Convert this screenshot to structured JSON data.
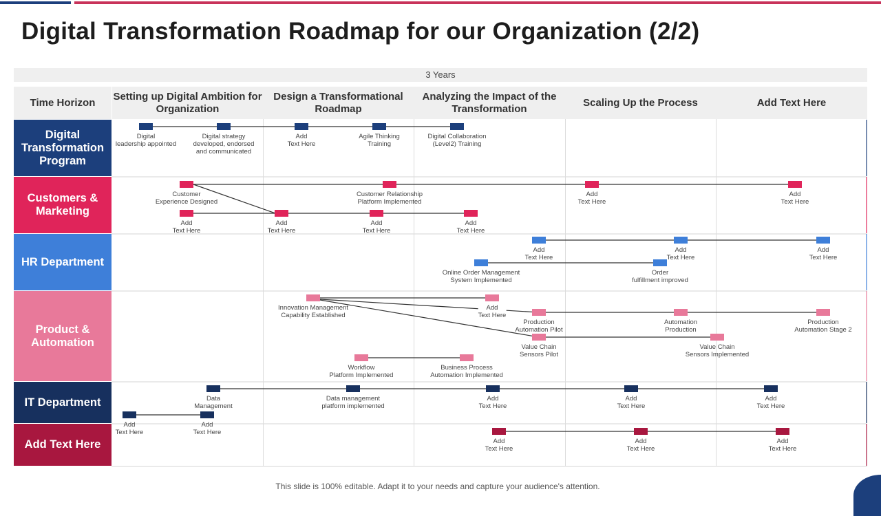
{
  "title": "Digital Transformation Roadmap for our Organization (2/2)",
  "span_label": "3 Years",
  "header": {
    "time_horizon": "Time Horizon",
    "phases": [
      "Setting up Digital Ambition for Organization",
      "Design a Transformational Roadmap",
      "Analyzing the Impact of the Transformation",
      "Scaling Up the Process",
      "Add  Text Here"
    ]
  },
  "rows": [
    {
      "label": "Digital Transformation Program",
      "color": "#1c3f7c"
    },
    {
      "label": "Customers & Marketing",
      "color": "#e0245a"
    },
    {
      "label": "HR Department",
      "color": "#3e7fd9"
    },
    {
      "label": "Product & Automation",
      "color": "#e8799a"
    },
    {
      "label": "IT Department",
      "color": "#17305e"
    },
    {
      "label": "Add  Text Here",
      "color": "#a8173f"
    }
  ],
  "milestones": [
    {
      "row": 0,
      "lines": [
        "Digital",
        "leadership appointed"
      ]
    },
    {
      "row": 0,
      "lines": [
        "Digital strategy",
        "developed, endorsed",
        "and communicated"
      ]
    },
    {
      "row": 0,
      "lines": [
        "Add",
        "Text Here"
      ]
    },
    {
      "row": 0,
      "lines": [
        "Agile Thinking",
        "Training"
      ]
    },
    {
      "row": 0,
      "lines": [
        "Digital Collaboration",
        "(Level2) Training"
      ]
    },
    {
      "row": 1,
      "lines": [
        "Customer",
        "Experience Designed"
      ]
    },
    {
      "row": 1,
      "lines": [
        "Customer Relationship",
        "Platform Implemented"
      ]
    },
    {
      "row": 1,
      "lines": [
        "Add",
        "Text Here"
      ]
    },
    {
      "row": 1,
      "lines": [
        "Add",
        "Text Here"
      ]
    },
    {
      "row": 1,
      "lines": [
        "Add",
        "Text Here"
      ]
    },
    {
      "row": 1,
      "lines": [
        "Add",
        "Text Here"
      ]
    },
    {
      "row": 1,
      "lines": [
        "Add",
        "Text Here"
      ]
    },
    {
      "row": 1,
      "lines": [
        "Add",
        "Text Here"
      ]
    },
    {
      "row": 2,
      "lines": [
        "Add",
        "Text Here"
      ]
    },
    {
      "row": 2,
      "lines": [
        "Add",
        "Text Here"
      ]
    },
    {
      "row": 2,
      "lines": [
        "Add",
        "Text Here"
      ]
    },
    {
      "row": 2,
      "lines": [
        "Online Order Management",
        "System Implemented"
      ]
    },
    {
      "row": 2,
      "lines": [
        "Order",
        "fulfillment improved"
      ]
    },
    {
      "row": 3,
      "lines": [
        "Innovation Management",
        "Capability Established"
      ]
    },
    {
      "row": 3,
      "lines": [
        "Add",
        "Text Here"
      ]
    },
    {
      "row": 3,
      "lines": [
        "Production",
        "Automation Pilot"
      ]
    },
    {
      "row": 3,
      "lines": [
        "Automation",
        "Production"
      ]
    },
    {
      "row": 3,
      "lines": [
        "Production",
        "Automation Stage 2"
      ]
    },
    {
      "row": 3,
      "lines": [
        "Value Chain",
        "Sensors Pilot"
      ]
    },
    {
      "row": 3,
      "lines": [
        "Value Chain",
        "Sensors Implemented"
      ]
    },
    {
      "row": 3,
      "lines": [
        "Workflow",
        "Platform Implemented"
      ]
    },
    {
      "row": 3,
      "lines": [
        "Business Process",
        "Automation Implemented"
      ]
    },
    {
      "row": 4,
      "lines": [
        "Data",
        "Management"
      ]
    },
    {
      "row": 4,
      "lines": [
        "Data management",
        "platform implemented"
      ]
    },
    {
      "row": 4,
      "lines": [
        "Add",
        "Text Here"
      ]
    },
    {
      "row": 4,
      "lines": [
        "Add",
        "Text Here"
      ]
    },
    {
      "row": 4,
      "lines": [
        "Add",
        "Text Here"
      ]
    },
    {
      "row": 4,
      "lines": [
        "Add",
        "Text Here"
      ]
    },
    {
      "row": 4,
      "lines": [
        "Add",
        "Text Here"
      ]
    },
    {
      "row": 5,
      "lines": [
        "Add",
        "Text Here"
      ]
    },
    {
      "row": 5,
      "lines": [
        "Add",
        "Text Here"
      ]
    },
    {
      "row": 5,
      "lines": [
        "Add",
        "Text Here"
      ]
    }
  ],
  "footer": "This slide is 100% editable. Adapt it to your needs and capture your audience's attention."
}
